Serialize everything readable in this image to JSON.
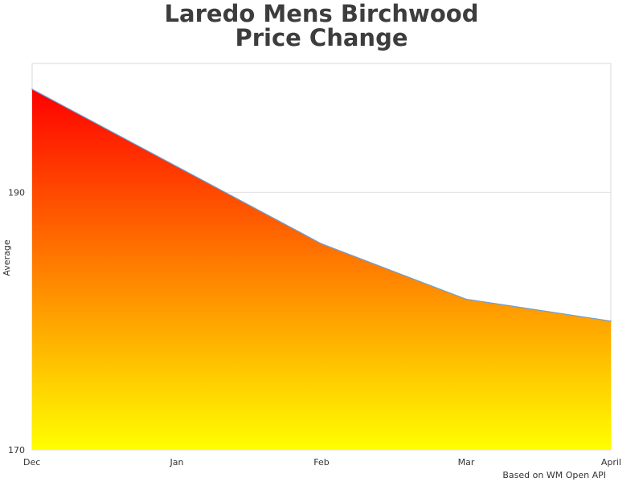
{
  "chart_data": {
    "type": "area",
    "title": "Laredo Mens Birchwood\nPrice Change",
    "xlabel": "",
    "ylabel": "Average",
    "categories": [
      "Dec",
      "Jan",
      "Feb",
      "Mar",
      "April"
    ],
    "series": [
      {
        "values": [
          198.0,
          192.0,
          186.0,
          181.7,
          180.0
        ]
      }
    ],
    "ylim": [
      170,
      200
    ],
    "yticks": [
      "170",
      "190"
    ],
    "grid": true,
    "legend": "none",
    "colors": {
      "fill_top": "#ff0000",
      "fill_bottom": "#ffff00",
      "line": "#6a9fd6",
      "grid": "#e0e0e0",
      "frame": "#d9d9d9"
    }
  },
  "credit": "Based on WM Open API"
}
